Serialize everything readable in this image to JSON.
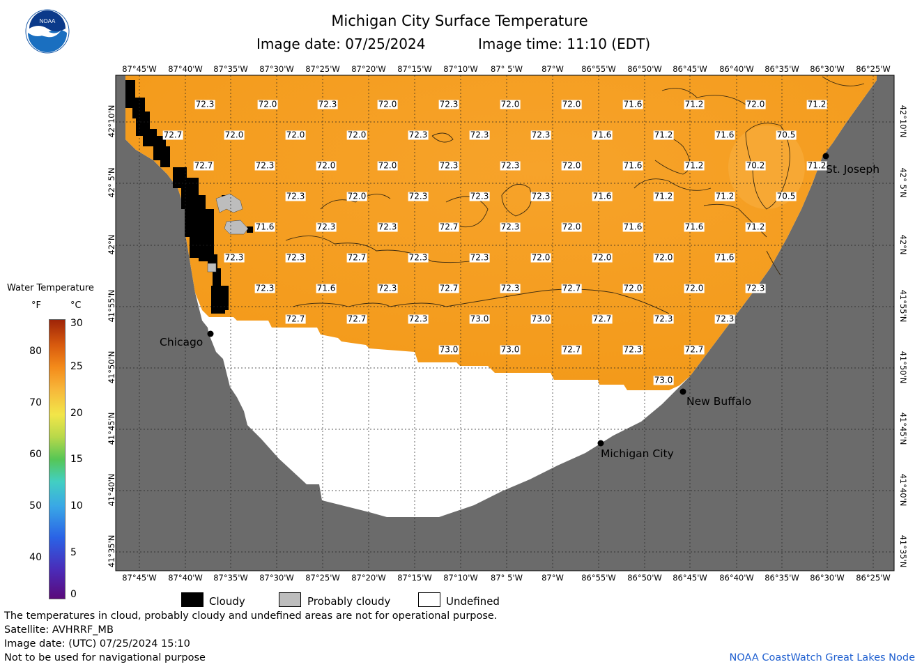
{
  "title": "Michigan City Surface Temperature",
  "image_date": "Image date: 07/25/2024",
  "image_time": "Image time: 11:10 (EDT)",
  "logo_text": "NOAA",
  "longitude_labels": [
    "87°45'W",
    "87°40'W",
    "87°35'W",
    "87°30'W",
    "87°25'W",
    "87°20'W",
    "87°15'W",
    "87°10'W",
    "87° 5'W",
    "87°W",
    "86°55'W",
    "86°50'W",
    "86°45'W",
    "86°40'W",
    "86°35'W",
    "86°30'W",
    "86°25'W"
  ],
  "latitude_labels": [
    "42°10'N",
    "42° 5'N",
    "42°N",
    "41°55'N",
    "41°50'N",
    "41°45'N",
    "41°40'N",
    "41°35'N"
  ],
  "cities": [
    {
      "name": "Chicago"
    },
    {
      "name": "St. Joseph"
    },
    {
      "name": "New Buffalo"
    },
    {
      "name": "Michigan City"
    }
  ],
  "temperature_rows": [
    [
      "72.3",
      "72.0",
      "72.3",
      "72.0",
      "72.3",
      "72.0",
      "72.0",
      "71.6",
      "71.2",
      "72.0",
      "71.2"
    ],
    [
      "72.7",
      "72.0",
      "72.0",
      "72.0",
      "72.3",
      "72.3",
      "72.3",
      "71.6",
      "71.2",
      "71.6",
      "70.5"
    ],
    [
      "72.7",
      "72.3",
      "72.0",
      "72.0",
      "72.3",
      "72.3",
      "72.0",
      "71.6",
      "71.2",
      "70.2",
      "71.2"
    ],
    [
      "72.3",
      "72.0",
      "72.3",
      "72.3",
      "72.3",
      "71.6",
      "71.2",
      "71.2",
      "70.5"
    ],
    [
      "71.6",
      "72.3",
      "72.3",
      "72.7",
      "72.3",
      "72.0",
      "71.6",
      "71.6",
      "71.2"
    ],
    [
      "72.3",
      "72.3",
      "72.7",
      "72.3",
      "72.3",
      "72.0",
      "72.0",
      "72.0",
      "71.6"
    ],
    [
      "72.3",
      "71.6",
      "72.3",
      "72.7",
      "72.3",
      "72.7",
      "72.0",
      "72.0",
      "72.3"
    ],
    [
      "72.7",
      "72.7",
      "72.3",
      "73.0",
      "73.0",
      "72.7",
      "72.3",
      "72.3"
    ],
    [
      "73.0",
      "73.0",
      "72.7",
      "72.3",
      "72.7"
    ],
    [
      "73.0"
    ]
  ],
  "colorbar": {
    "title": "Water Temperature",
    "unit_f": "°F",
    "unit_c": "°C",
    "ticks_f": [
      "80",
      "70",
      "60",
      "50",
      "40"
    ],
    "ticks_c": [
      "30",
      "25",
      "20",
      "15",
      "10",
      "5",
      "0"
    ]
  },
  "legend": {
    "cloudy": "Cloudy",
    "probably_cloudy": "Probably cloudy",
    "undefined": "Undefined"
  },
  "footer": {
    "line1": "The temperatures in cloud, probably cloudy and undefined areas are not for operational purpose.",
    "line2": "Satellite: AVHRRF_MB",
    "line3": "Image date: (UTC) 07/25/2024  15:10",
    "line4": "Not to be used for navigational purpose",
    "credit": "NOAA CoastWatch Great Lakes Node"
  },
  "colors": {
    "water": "#f5a020",
    "land": "#6b6b6b",
    "cloudy": "#000000",
    "probably_cloudy": "#bdbdbd",
    "undefined": "#ffffff"
  }
}
